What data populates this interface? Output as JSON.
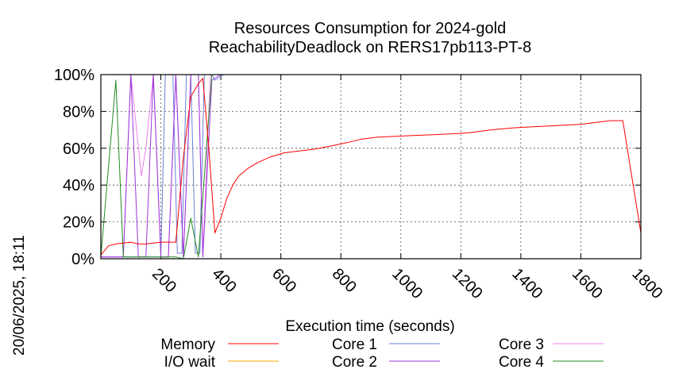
{
  "chart_data": {
    "type": "line",
    "title": "Resources Consumption for 2024-gold",
    "subtitle": "ReachabilityDeadlock on RERS17pb113-PT-8",
    "xlabel": "Execution time (seconds)",
    "ylabel": "",
    "xlim": [
      0,
      1800
    ],
    "ylim": [
      0,
      100
    ],
    "x_ticks": [
      "200",
      "400",
      "600",
      "800",
      "1000",
      "1200",
      "1400",
      "1600",
      "1800"
    ],
    "y_ticks": [
      "0%",
      "20%",
      "40%",
      "60%",
      "80%",
      "100%"
    ],
    "grid": true,
    "legend_position": "bottom",
    "series": [
      {
        "name": "Memory",
        "color": "#ff0000",
        "points": [
          [
            0,
            2
          ],
          [
            25,
            7
          ],
          [
            50,
            8
          ],
          [
            75,
            8.5
          ],
          [
            100,
            9
          ],
          [
            125,
            8
          ],
          [
            150,
            8
          ],
          [
            175,
            8.5
          ],
          [
            200,
            9
          ],
          [
            225,
            9
          ],
          [
            250,
            9
          ],
          [
            275,
            55
          ],
          [
            300,
            88
          ],
          [
            325,
            95
          ],
          [
            340,
            98
          ],
          [
            360,
            60
          ],
          [
            380,
            14
          ],
          [
            400,
            22
          ],
          [
            420,
            33
          ],
          [
            440,
            40
          ],
          [
            460,
            45
          ],
          [
            490,
            49
          ],
          [
            520,
            52
          ],
          [
            560,
            55
          ],
          [
            610,
            57.5
          ],
          [
            660,
            58.5
          ],
          [
            710,
            59.5
          ],
          [
            760,
            61
          ],
          [
            820,
            63
          ],
          [
            870,
            65
          ],
          [
            920,
            66
          ],
          [
            980,
            66.5
          ],
          [
            1050,
            67
          ],
          [
            1130,
            67.5
          ],
          [
            1190,
            68
          ],
          [
            1230,
            68.5
          ],
          [
            1300,
            70
          ],
          [
            1370,
            71
          ],
          [
            1420,
            71.5
          ],
          [
            1480,
            72
          ],
          [
            1540,
            72.5
          ],
          [
            1600,
            73
          ],
          [
            1650,
            74
          ],
          [
            1700,
            75
          ],
          [
            1740,
            75
          ],
          [
            1800,
            14
          ]
        ]
      },
      {
        "name": "I/O wait",
        "color": "#ffa500",
        "points": [
          [
            0,
            0
          ],
          [
            400,
            0
          ],
          [
            1800,
            0
          ]
        ]
      },
      {
        "name": "Core 1",
        "color": "#6a7fd6",
        "points": [
          [
            0,
            1
          ],
          [
            75,
            1
          ],
          [
            200,
            1
          ],
          [
            215,
            100
          ],
          [
            240,
            100
          ],
          [
            255,
            3
          ],
          [
            270,
            3
          ],
          [
            285,
            100
          ],
          [
            300,
            100
          ],
          [
            315,
            3
          ],
          [
            330,
            3
          ],
          [
            345,
            100
          ],
          [
            370,
            100
          ],
          [
            380,
            97
          ],
          [
            410,
            100
          ],
          [
            1800,
            100
          ]
        ]
      },
      {
        "name": "Core 2",
        "color": "#9a35d8",
        "points": [
          [
            0,
            1
          ],
          [
            25,
            1
          ],
          [
            50,
            1
          ],
          [
            75,
            1
          ],
          [
            100,
            100
          ],
          [
            125,
            1
          ],
          [
            150,
            1
          ],
          [
            175,
            100
          ],
          [
            200,
            1
          ],
          [
            225,
            1
          ],
          [
            250,
            100
          ],
          [
            275,
            1
          ],
          [
            300,
            100
          ],
          [
            325,
            100
          ],
          [
            340,
            1
          ],
          [
            370,
            97
          ],
          [
            400,
            100
          ],
          [
            1800,
            100
          ],
          [
            1805,
            99
          ]
        ]
      },
      {
        "name": "Core 3",
        "color": "#f080f0",
        "points": [
          [
            0,
            1
          ],
          [
            50,
            1
          ],
          [
            75,
            1
          ],
          [
            100,
            100
          ],
          [
            135,
            45
          ],
          [
            150,
            60
          ],
          [
            175,
            100
          ],
          [
            200,
            1
          ],
          [
            225,
            1
          ],
          [
            250,
            100
          ],
          [
            275,
            1
          ],
          [
            300,
            100
          ],
          [
            325,
            100
          ],
          [
            340,
            3
          ],
          [
            365,
            100
          ],
          [
            1800,
            100
          ],
          [
            1805,
            99
          ]
        ]
      },
      {
        "name": "Core 4",
        "color": "#228b22",
        "points": [
          [
            0,
            1
          ],
          [
            50,
            97
          ],
          [
            75,
            1
          ],
          [
            100,
            1
          ],
          [
            150,
            1
          ],
          [
            200,
            1
          ],
          [
            220,
            1
          ],
          [
            250,
            1
          ],
          [
            275,
            0
          ],
          [
            300,
            22
          ],
          [
            325,
            1
          ],
          [
            370,
            100
          ],
          [
            1800,
            100
          ]
        ]
      }
    ]
  },
  "timestamp": "20/06/2025, 18:11"
}
